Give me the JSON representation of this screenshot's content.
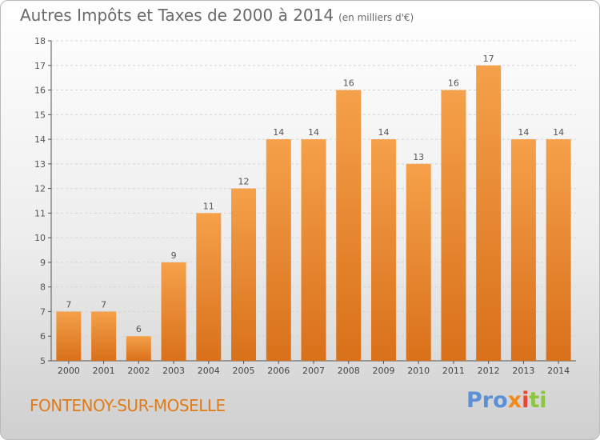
{
  "chart_data": {
    "type": "bar",
    "title": "Autres Impôts et Taxes de 2000 à 2014",
    "subtitle": "(en milliers d'€)",
    "categories": [
      "2000",
      "2001",
      "2002",
      "2003",
      "2004",
      "2005",
      "2006",
      "2007",
      "2008",
      "2009",
      "2010",
      "2011",
      "2012",
      "2013",
      "2014"
    ],
    "values": [
      7,
      7,
      6,
      9,
      11,
      12,
      14,
      14,
      16,
      14,
      13,
      16,
      17,
      14,
      14
    ],
    "ylim": [
      5,
      18
    ],
    "yticks": [
      5,
      6,
      7,
      8,
      9,
      10,
      11,
      12,
      13,
      14,
      15,
      16,
      17,
      18
    ],
    "grid": true,
    "bar_color": "#f08a2c"
  },
  "footer": {
    "commune": "FONTENOY-SUR-MOSELLE",
    "logo": {
      "p1": "Pro",
      "p2": "x",
      "p3": "i",
      "p4": "ti"
    }
  }
}
